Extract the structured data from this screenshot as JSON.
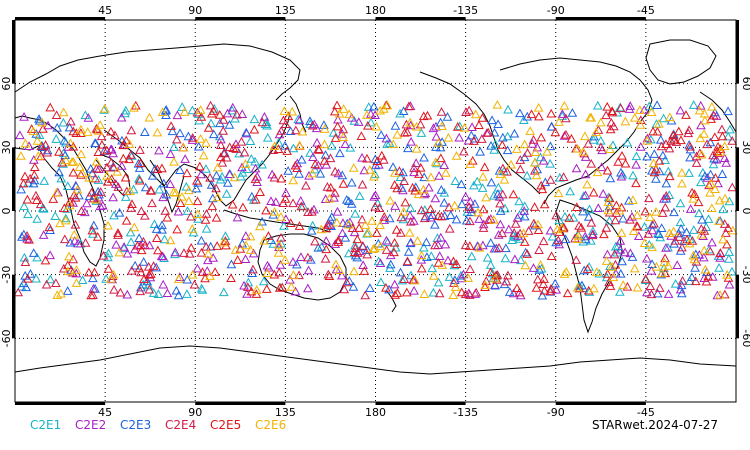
{
  "map": {
    "projection": "cylindrical-equidistant",
    "center_longitude": 180,
    "lon_range": [
      0,
      360
    ],
    "lat_range": [
      -90,
      90
    ],
    "grid_lines": true,
    "grid_style": "dotted",
    "frame": "black-checkered-border"
  },
  "axes": {
    "top_ticks": [
      "45",
      "90",
      "135",
      "180",
      "-135",
      "-90",
      "-45"
    ],
    "bottom_ticks": [
      "45",
      "90",
      "135",
      "180",
      "-135",
      "-90",
      "-45"
    ],
    "left_ticks": [
      "60",
      "30",
      "0",
      "-30",
      "-60"
    ],
    "right_ticks": [
      "60",
      "30",
      "0",
      "-30",
      "-60"
    ]
  },
  "legend": {
    "items": [
      {
        "label": "C2E1",
        "color": "#17b3c9"
      },
      {
        "label": "C2E2",
        "color": "#a81fc7"
      },
      {
        "label": "C2E3",
        "color": "#1e63e0"
      },
      {
        "label": "C2E4",
        "color": "#d11c46"
      },
      {
        "label": "C2E5",
        "color": "#e0151b"
      },
      {
        "label": "C2E6",
        "color": "#f2b300"
      }
    ]
  },
  "stamp": "STARwet.2024-07-27",
  "marker": {
    "symbol": "triangle-outline",
    "lat_band": [
      -40,
      50
    ],
    "count_per_series": 260
  }
}
